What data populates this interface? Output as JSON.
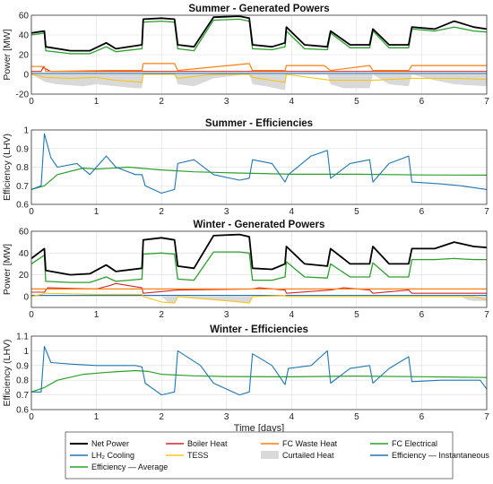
{
  "chart_data": [
    {
      "type": "line",
      "title": "Summer - Generated Powers",
      "ylabel": "Power [MW]",
      "xlabel": "",
      "xlim": [
        0,
        7
      ],
      "ylim": [
        -20,
        60
      ],
      "xticks": [
        "0",
        "1",
        "2",
        "3",
        "4",
        "5",
        "6",
        "7"
      ],
      "yticks": [
        "-20",
        "0",
        "20",
        "40",
        "60"
      ],
      "grid": true,
      "series": [
        {
          "name": "Net Power",
          "color": "#000000",
          "width": 1.8,
          "x": [
            0,
            0.2,
            0.22,
            0.6,
            0.9,
            1.15,
            1.3,
            1.7,
            1.72,
            2.0,
            2.2,
            2.25,
            2.5,
            2.8,
            3.2,
            3.35,
            3.4,
            3.7,
            3.9,
            3.92,
            4.2,
            4.55,
            4.6,
            4.9,
            5.2,
            5.25,
            5.5,
            5.8,
            5.85,
            6.2,
            6.5,
            6.8,
            7.0
          ],
          "y": [
            42,
            44,
            28,
            24,
            24,
            32,
            26,
            30,
            56,
            57,
            56,
            30,
            28,
            58,
            59,
            57,
            30,
            28,
            32,
            48,
            30,
            28,
            44,
            30,
            30,
            46,
            30,
            30,
            48,
            46,
            54,
            48,
            46
          ]
        },
        {
          "name": "FC Electrical",
          "color": "#2ca02c",
          "width": 1.3,
          "x": [
            0,
            0.2,
            0.22,
            0.6,
            0.9,
            1.15,
            1.3,
            1.7,
            1.72,
            2.0,
            2.2,
            2.25,
            2.5,
            2.8,
            3.2,
            3.35,
            3.4,
            3.7,
            3.9,
            3.92,
            4.2,
            4.55,
            4.6,
            4.9,
            5.2,
            5.25,
            5.5,
            5.8,
            5.85,
            6.2,
            6.5,
            6.8,
            7.0
          ],
          "y": [
            40,
            42,
            24,
            21,
            21,
            28,
            23,
            26,
            53,
            54,
            53,
            26,
            24,
            55,
            56,
            54,
            26,
            25,
            28,
            44,
            26,
            25,
            42,
            27,
            27,
            44,
            27,
            27,
            46,
            44,
            48,
            44,
            43
          ]
        },
        {
          "name": "FC Waste Heat",
          "color": "#ff7f0e",
          "width": 1.2,
          "x": [
            0,
            0.2,
            0.22,
            1.2,
            1.7,
            1.72,
            2.2,
            2.25,
            3.35,
            3.4,
            3.9,
            3.92,
            4.5,
            4.6,
            5.2,
            5.25,
            5.8,
            5.85,
            7.0
          ],
          "y": [
            8,
            8,
            3,
            4,
            4,
            11,
            11,
            4,
            11,
            4,
            4,
            9,
            9,
            4,
            9,
            4,
            4,
            9,
            9
          ]
        },
        {
          "name": "Boiler Heat",
          "color": "#d62728",
          "width": 1.1,
          "x": [
            0,
            0.15,
            0.18,
            0.3,
            1.2,
            1.7,
            2.2,
            3.4,
            4.6,
            5.8,
            7.0
          ],
          "y": [
            3,
            3,
            7,
            3,
            3,
            3,
            3,
            3,
            3,
            3,
            3
          ]
        },
        {
          "name": "TESS",
          "color": "#f5c518",
          "width": 1.1,
          "x": [
            0,
            0.22,
            0.6,
            1.0,
            1.3,
            1.7,
            1.72,
            2.2,
            2.25,
            2.8,
            3.35,
            3.4,
            3.9,
            3.92,
            4.6,
            5.25,
            5.85,
            6.5,
            7.0
          ],
          "y": [
            0,
            -3,
            -4,
            -3,
            -6,
            -8,
            0,
            0,
            -4,
            0,
            0,
            -3,
            -8,
            0,
            -6,
            -6,
            -4,
            -4,
            -5
          ]
        },
        {
          "name": "LH2 Cooling",
          "color": "#1f77b4",
          "width": 1.1,
          "x": [
            0,
            7.0
          ],
          "y": [
            1,
            1
          ]
        },
        {
          "name": "Curtailed Heat",
          "color": "#d9d9d9",
          "fill": true,
          "x": [
            0,
            0.22,
            0.4,
            0.8,
            1.0,
            1.3,
            1.6,
            1.7,
            1.72,
            2.2,
            2.25,
            2.5,
            2.8,
            3.3,
            3.35,
            3.4,
            3.6,
            3.9,
            3.92,
            4.55,
            4.6,
            4.8,
            5.2,
            5.25,
            5.5,
            5.8,
            5.85,
            6.2,
            6.5,
            7.0
          ],
          "y": [
            0,
            -8,
            -10,
            -12,
            -10,
            -12,
            -14,
            -14,
            0,
            0,
            -10,
            -12,
            -4,
            0,
            0,
            -10,
            -12,
            -16,
            0,
            0,
            -10,
            -14,
            -14,
            0,
            -10,
            -12,
            0,
            -6,
            -10,
            -12
          ]
        }
      ]
    },
    {
      "type": "line",
      "title": "Summer - Efficiencies",
      "ylabel": "Efficiency (LHV)",
      "xlabel": "",
      "xlim": [
        0,
        7
      ],
      "ylim": [
        0.6,
        1.0
      ],
      "xticks": [
        "0",
        "1",
        "2",
        "3",
        "4",
        "5",
        "6",
        "7"
      ],
      "yticks": [
        "0.6",
        "0.7",
        "0.8",
        "0.9",
        "1"
      ],
      "grid": true,
      "series": [
        {
          "name": "Efficiency — Instantaneous",
          "color": "#1f77b4",
          "width": 1.1,
          "x": [
            0,
            0.15,
            0.2,
            0.3,
            0.4,
            0.7,
            0.9,
            1.15,
            1.3,
            1.6,
            1.7,
            1.75,
            2.0,
            2.2,
            2.25,
            2.5,
            2.8,
            3.2,
            3.35,
            3.4,
            3.7,
            3.9,
            3.95,
            4.3,
            4.55,
            4.6,
            4.9,
            5.2,
            5.25,
            5.5,
            5.8,
            5.85,
            6.3,
            6.6,
            7.0
          ],
          "y": [
            0.68,
            0.7,
            0.98,
            0.85,
            0.8,
            0.82,
            0.76,
            0.86,
            0.8,
            0.76,
            0.76,
            0.7,
            0.66,
            0.68,
            0.82,
            0.84,
            0.76,
            0.73,
            0.74,
            0.84,
            0.82,
            0.72,
            0.76,
            0.86,
            0.89,
            0.74,
            0.82,
            0.84,
            0.72,
            0.82,
            0.86,
            0.72,
            0.71,
            0.7,
            0.68
          ]
        },
        {
          "name": "Efficiency — Average",
          "color": "#2ca02c",
          "width": 1.2,
          "x": [
            0,
            0.2,
            0.4,
            0.8,
            1.0,
            1.5,
            2.0,
            2.5,
            3.0,
            4.0,
            5.0,
            6.0,
            7.0
          ],
          "y": [
            0.68,
            0.7,
            0.76,
            0.795,
            0.79,
            0.8,
            0.785,
            0.775,
            0.77,
            0.762,
            0.762,
            0.758,
            0.757
          ]
        }
      ]
    },
    {
      "type": "line",
      "title": "Winter - Generated Powers",
      "ylabel": "Power [MW]",
      "xlabel": "",
      "xlim": [
        0,
        7
      ],
      "ylim": [
        -10,
        60
      ],
      "xticks": [
        "0",
        "1",
        "2",
        "3",
        "4",
        "5",
        "6",
        "7"
      ],
      "yticks": [
        "0",
        "20",
        "40",
        "60"
      ],
      "grid": true,
      "series": [
        {
          "name": "Net Power",
          "color": "#000000",
          "width": 1.8,
          "x": [
            0,
            0.2,
            0.22,
            0.6,
            0.9,
            1.15,
            1.3,
            1.7,
            1.72,
            2.0,
            2.2,
            2.25,
            2.5,
            2.8,
            3.2,
            3.35,
            3.4,
            3.7,
            3.9,
            3.92,
            4.2,
            4.55,
            4.6,
            4.9,
            5.2,
            5.25,
            5.5,
            5.8,
            5.85,
            6.2,
            6.5,
            6.8,
            7.0
          ],
          "y": [
            35,
            44,
            24,
            20,
            21,
            29,
            23,
            26,
            52,
            54,
            52,
            28,
            26,
            56,
            57,
            55,
            26,
            25,
            30,
            46,
            30,
            28,
            44,
            30,
            30,
            46,
            30,
            30,
            44,
            44,
            50,
            46,
            45
          ]
        },
        {
          "name": "FC Electrical",
          "color": "#2ca02c",
          "width": 1.3,
          "x": [
            0,
            0.2,
            0.22,
            0.6,
            0.9,
            1.15,
            1.3,
            1.7,
            1.72,
            2.0,
            2.2,
            2.25,
            2.5,
            2.8,
            3.2,
            3.35,
            3.4,
            3.7,
            3.9,
            3.92,
            4.2,
            4.55,
            4.6,
            4.9,
            5.2,
            5.25,
            5.5,
            5.8,
            5.85,
            6.2,
            6.5,
            6.8,
            7.0
          ],
          "y": [
            30,
            38,
            14,
            13,
            13,
            18,
            14,
            16,
            39,
            40,
            39,
            16,
            15,
            41,
            41,
            40,
            15,
            15,
            18,
            32,
            18,
            17,
            30,
            18,
            18,
            31,
            18,
            18,
            34,
            34,
            35,
            34,
            34
          ]
        },
        {
          "name": "FC Waste Heat",
          "color": "#ff7f0e",
          "width": 1.2,
          "x": [
            0,
            7.0
          ],
          "y": [
            7,
            7
          ]
        },
        {
          "name": "Boiler Heat",
          "color": "#d62728",
          "width": 1.1,
          "x": [
            0,
            0.2,
            0.25,
            1.0,
            1.2,
            1.3,
            1.5,
            1.7,
            1.72,
            2.25,
            3.4,
            3.5,
            3.9,
            3.92,
            4.6,
            4.8,
            5.2,
            5.25,
            5.8,
            5.85,
            7.0
          ],
          "y": [
            4,
            4,
            8,
            7,
            10,
            12,
            10,
            8,
            3,
            6,
            7,
            8,
            6,
            3,
            6,
            8,
            6,
            3,
            6,
            3,
            3
          ]
        },
        {
          "name": "TESS",
          "color": "#f5c518",
          "width": 1.1,
          "x": [
            0,
            0.22,
            1.0,
            1.7,
            1.72,
            2.0,
            2.2,
            2.25,
            3.2,
            3.35,
            3.4,
            3.9,
            3.92,
            4.6,
            5.25,
            5.85,
            6.8,
            7.0
          ],
          "y": [
            0,
            3,
            2,
            2,
            0,
            -5,
            -6,
            0,
            -5,
            -6,
            0,
            1,
            0,
            0,
            0,
            0,
            0,
            -3
          ]
        },
        {
          "name": "LH2 Cooling",
          "color": "#1f77b4",
          "width": 1.1,
          "x": [
            0,
            7.0
          ],
          "y": [
            1,
            1
          ]
        },
        {
          "name": "Curtailed Heat",
          "color": "#d9d9d9",
          "fill": true,
          "x": [
            0,
            2.0,
            2.1,
            2.2,
            2.25,
            3.2,
            3.3,
            3.35,
            3.4,
            6.6,
            6.7,
            6.8,
            7.0
          ],
          "y": [
            0,
            0,
            -5,
            -6,
            0,
            -5,
            -6,
            -6,
            0,
            0,
            -3,
            -4,
            -4
          ]
        }
      ]
    },
    {
      "type": "line",
      "title": "Winter - Efficiencies",
      "ylabel": "Efficiency (LHV)",
      "xlabel": "Time [days]",
      "xlim": [
        0,
        7
      ],
      "ylim": [
        0.6,
        1.1
      ],
      "xticks": [
        "0",
        "1",
        "2",
        "3",
        "4",
        "5",
        "6",
        "7"
      ],
      "yticks": [
        "0.6",
        "0.7",
        "0.8",
        "0.9",
        "1",
        "1.1"
      ],
      "grid": true,
      "series": [
        {
          "name": "Efficiency — Instantaneous",
          "color": "#1f77b4",
          "width": 1.1,
          "x": [
            0,
            0.15,
            0.2,
            0.3,
            0.6,
            1.0,
            1.3,
            1.6,
            1.7,
            1.75,
            2.0,
            2.2,
            2.25,
            2.6,
            2.8,
            3.2,
            3.35,
            3.4,
            3.7,
            3.9,
            3.95,
            4.3,
            4.55,
            4.6,
            4.9,
            5.2,
            5.25,
            5.5,
            5.8,
            5.85,
            6.3,
            6.6,
            6.9,
            7.0
          ],
          "y": [
            0.72,
            0.72,
            1.03,
            0.92,
            0.91,
            0.9,
            0.9,
            0.9,
            0.89,
            0.78,
            0.7,
            0.72,
            1.0,
            0.9,
            0.78,
            0.7,
            0.72,
            0.98,
            0.9,
            0.77,
            0.88,
            0.9,
            1.0,
            0.78,
            0.88,
            0.9,
            0.78,
            0.88,
            0.96,
            0.79,
            0.8,
            0.8,
            0.8,
            0.74
          ]
        },
        {
          "name": "Efficiency — Average",
          "color": "#2ca02c",
          "width": 1.2,
          "x": [
            0,
            0.2,
            0.4,
            0.8,
            1.2,
            1.6,
            1.8,
            2.0,
            2.5,
            3.0,
            4.0,
            5.0,
            6.0,
            7.0
          ],
          "y": [
            0.72,
            0.75,
            0.8,
            0.84,
            0.855,
            0.865,
            0.86,
            0.84,
            0.83,
            0.825,
            0.823,
            0.828,
            0.824,
            0.818
          ]
        }
      ]
    }
  ],
  "legend": {
    "placement": "bottom",
    "entries": [
      {
        "label": "Net Power",
        "color": "#000000",
        "kind": "line"
      },
      {
        "label": "Boiler Heat",
        "color": "#d62728",
        "kind": "line"
      },
      {
        "label": "FC Waste Heat",
        "color": "#ff7f0e",
        "kind": "line"
      },
      {
        "label": "FC Electrical",
        "color": "#2ca02c",
        "kind": "line"
      },
      {
        "label": "LH₂ Cooling",
        "color": "#1f77b4",
        "kind": "line"
      },
      {
        "label": "TESS",
        "color": "#f5c518",
        "kind": "line"
      },
      {
        "label": "Curtailed Heat",
        "color": "#d9d9d9",
        "kind": "patch"
      },
      {
        "label": "Efficiency — Instantaneous",
        "color": "#1f77b4",
        "kind": "line"
      },
      {
        "label": "Efficiency — Average",
        "color": "#2ca02c",
        "kind": "line"
      }
    ]
  }
}
